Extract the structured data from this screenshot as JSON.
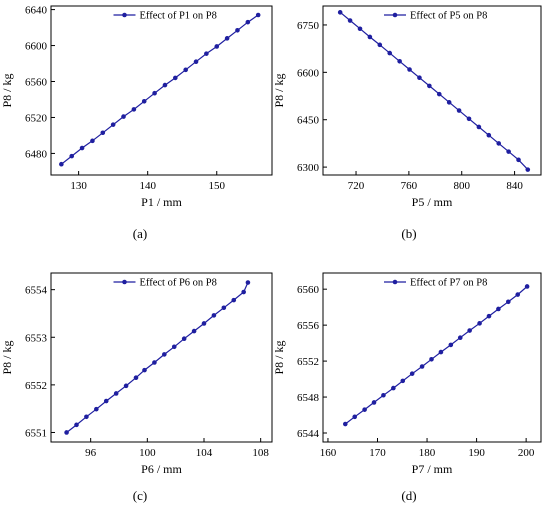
{
  "colors": {
    "series": "#1f1fa0",
    "axes": "#000000",
    "background": "#ffffff"
  },
  "chart_data": [
    {
      "type": "line",
      "panel_label": "(a)",
      "xlabel": "P1 / mm",
      "ylabel": "P8 / kg",
      "legend": "Effect of  P1 on P8",
      "legend_position": "top-center",
      "grid": false,
      "xlim": [
        126,
        158
      ],
      "ylim": [
        6456,
        6644
      ],
      "xticks": [
        130,
        140,
        150
      ],
      "yticks": [
        6480,
        6520,
        6560,
        6600,
        6640
      ],
      "x": [
        127.5,
        129,
        130.5,
        132,
        133.5,
        135,
        136.5,
        138,
        139.5,
        141,
        142.5,
        144,
        145.5,
        147,
        148.5,
        150,
        151.5,
        153,
        154.5,
        156
      ],
      "y": [
        6468,
        6477,
        6486,
        6494,
        6503,
        6512,
        6521,
        6529,
        6538,
        6547,
        6556,
        6564,
        6573,
        6582,
        6591,
        6599,
        6608,
        6617,
        6626,
        6634
      ]
    },
    {
      "type": "line",
      "panel_label": "(b)",
      "xlabel": "P5 / mm",
      "ylabel": "P8 / kg",
      "legend": "Effect of  P5 on P8",
      "legend_position": "top-center",
      "grid": false,
      "xlim": [
        695,
        860
      ],
      "ylim": [
        6275,
        6810
      ],
      "xticks": [
        720,
        760,
        800,
        840
      ],
      "yticks": [
        6300,
        6450,
        6600,
        6750
      ],
      "x": [
        708,
        715.5,
        723,
        730.5,
        738,
        745.5,
        753,
        760.5,
        768,
        775.5,
        783,
        790.5,
        798,
        805.5,
        813,
        820.5,
        828,
        835.5,
        843,
        850
      ],
      "y": [
        6790,
        6764,
        6738,
        6712,
        6687,
        6661,
        6635,
        6609,
        6583,
        6557,
        6531,
        6505,
        6479,
        6453,
        6427,
        6401,
        6375,
        6349,
        6323,
        6292
      ]
    },
    {
      "type": "line",
      "panel_label": "(c)",
      "xlabel": "P6 / mm",
      "ylabel": "P8 / kg",
      "legend": "Effect of  P6 on P8",
      "legend_position": "top-center",
      "grid": false,
      "xlim": [
        93.2,
        108.8
      ],
      "ylim": [
        6550.8,
        6554.35
      ],
      "xticks": [
        96,
        100,
        104,
        108
      ],
      "yticks": [
        6551,
        6552,
        6553,
        6554
      ],
      "x": [
        94.3,
        95,
        95.7,
        96.4,
        97.1,
        97.8,
        98.5,
        99.2,
        99.8,
        100.5,
        101.2,
        101.9,
        102.6,
        103.3,
        104,
        104.7,
        105.4,
        106.1,
        106.8,
        107.1
      ],
      "y": [
        6551.0,
        6551.16,
        6551.33,
        6551.49,
        6551.66,
        6551.82,
        6551.98,
        6552.15,
        6552.31,
        6552.47,
        6552.64,
        6552.8,
        6552.97,
        6553.13,
        6553.29,
        6553.46,
        6553.62,
        6553.78,
        6553.95,
        6554.15
      ]
    },
    {
      "type": "line",
      "panel_label": "(d)",
      "xlabel": "P7 / mm",
      "ylabel": "P8 / kg",
      "legend": "Effect of  P7 on P8",
      "legend_position": "top-center",
      "grid": false,
      "xlim": [
        159,
        203
      ],
      "ylim": [
        6543,
        6561.8
      ],
      "xticks": [
        160,
        170,
        180,
        190,
        200
      ],
      "yticks": [
        6544,
        6548,
        6552,
        6556,
        6560
      ],
      "x": [
        163.5,
        165.4,
        167.4,
        169.3,
        171.2,
        173.2,
        175.1,
        177,
        179,
        180.9,
        182.8,
        184.8,
        186.7,
        188.6,
        190.6,
        192.5,
        194.4,
        196.4,
        198.3,
        200.2
      ],
      "y": [
        6545,
        6545.8,
        6546.6,
        6547.4,
        6548.2,
        6549,
        6549.8,
        6550.6,
        6551.4,
        6552.2,
        6553,
        6553.8,
        6554.6,
        6555.4,
        6556.2,
        6557,
        6557.8,
        6558.6,
        6559.4,
        6560.3
      ]
    }
  ]
}
